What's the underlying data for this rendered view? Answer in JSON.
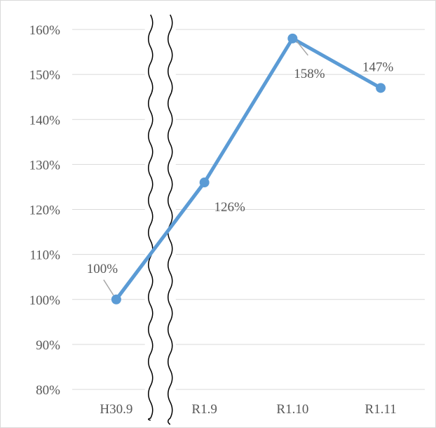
{
  "chart_data": {
    "type": "line",
    "title": "",
    "xlabel": "",
    "ylabel": "",
    "categories": [
      "H30.9",
      "R1.9",
      "R1.10",
      "R1.11"
    ],
    "series": [
      {
        "values": [
          100,
          126,
          158,
          147
        ],
        "color": "#5b9bd5"
      }
    ],
    "data_labels": [
      "100%",
      "126%",
      "158%",
      "147%"
    ],
    "ylim": [
      80,
      160
    ],
    "yticks": [
      80,
      90,
      100,
      110,
      120,
      130,
      140,
      150,
      160
    ],
    "ytick_labels": [
      "80%",
      "90%",
      "100%",
      "110%",
      "120%",
      "130%",
      "140%",
      "150%",
      "160%"
    ],
    "grid": true,
    "legend": "none",
    "axis_break": "wavy break between H30.9 and R1.9",
    "gridline_color": "#d9d9d9"
  }
}
